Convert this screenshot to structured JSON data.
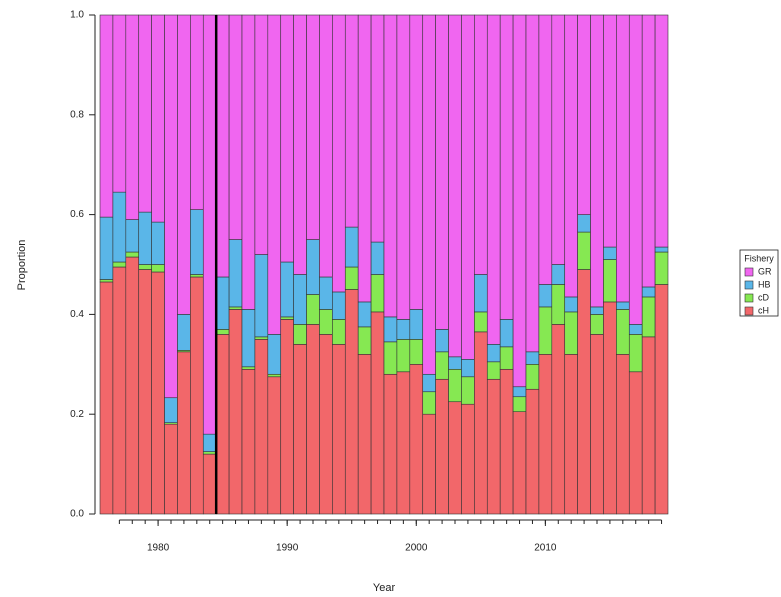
{
  "chart_data": {
    "type": "stacked-bar",
    "x_label": "Year",
    "y_label": "Proportion",
    "x": [
      1976,
      1977,
      1978,
      1979,
      1980,
      1981,
      1982,
      1983,
      1984,
      1985,
      1986,
      1987,
      1988,
      1989,
      1990,
      1991,
      1992,
      1993,
      1994,
      1995,
      1996,
      1997,
      1998,
      1999,
      2000,
      2001,
      2002,
      2003,
      2004,
      2005,
      2006,
      2007,
      2008,
      2009,
      2010,
      2011,
      2012,
      2013,
      2014,
      2015,
      2016,
      2017,
      2018,
      2019
    ],
    "xlim": [
      1975.5,
      2019.5
    ],
    "xticks": [
      1980,
      1990,
      2000,
      2010
    ],
    "ylim": [
      0,
      1
    ],
    "yticks": [
      {
        "value": 0,
        "label": "0.0"
      },
      0.2,
      0.4,
      0.6,
      0.8,
      {
        "value": 1,
        "label": "1.0"
      }
    ],
    "vline": 1984.5,
    "legend_title": "Fishery",
    "legend_position": "right",
    "series": [
      {
        "name": "cH",
        "color": "#f2676a",
        "values": [
          0.465,
          0.495,
          0.515,
          0.49,
          0.485,
          0.18,
          0.325,
          0.475,
          0.12,
          0.36,
          0.41,
          0.29,
          0.35,
          0.275,
          0.39,
          0.34,
          0.38,
          0.36,
          0.34,
          0.45,
          0.32,
          0.405,
          0.28,
          0.285,
          0.3,
          0.2,
          0.27,
          0.225,
          0.22,
          0.365,
          0.27,
          0.29,
          0.205,
          0.25,
          0.32,
          0.38,
          0.32,
          0.49,
          0.36,
          0.425,
          0.32,
          0.285,
          0.355,
          0.46
        ]
      },
      {
        "name": "cD",
        "color": "#86e852",
        "values": [
          0.005,
          0.01,
          0.01,
          0.01,
          0.015,
          0.003,
          0.003,
          0.005,
          0.005,
          0.01,
          0.005,
          0.005,
          0.005,
          0.005,
          0.005,
          0.04,
          0.06,
          0.05,
          0.05,
          0.045,
          0.055,
          0.075,
          0.065,
          0.065,
          0.05,
          0.045,
          0.055,
          0.065,
          0.055,
          0.04,
          0.035,
          0.045,
          0.03,
          0.05,
          0.095,
          0.08,
          0.085,
          0.075,
          0.04,
          0.085,
          0.09,
          0.075,
          0.08,
          0.065
        ]
      },
      {
        "name": "HB",
        "color": "#5ab6e8",
        "values": [
          0.125,
          0.14,
          0.065,
          0.105,
          0.085,
          0.05,
          0.072,
          0.13,
          0.035,
          0.105,
          0.135,
          0.115,
          0.165,
          0.08,
          0.11,
          0.1,
          0.11,
          0.065,
          0.055,
          0.08,
          0.05,
          0.065,
          0.05,
          0.04,
          0.06,
          0.035,
          0.045,
          0.025,
          0.035,
          0.075,
          0.035,
          0.055,
          0.02,
          0.025,
          0.045,
          0.04,
          0.03,
          0.035,
          0.015,
          0.025,
          0.015,
          0.02,
          0.02,
          0.01
        ]
      },
      {
        "name": "GR",
        "color": "#f066f0",
        "values": [
          0.405,
          0.355,
          0.41,
          0.395,
          0.415,
          0.767,
          0.6,
          0.39,
          0.84,
          0.525,
          0.45,
          0.59,
          0.48,
          0.64,
          0.495,
          0.52,
          0.45,
          0.525,
          0.555,
          0.425,
          0.575,
          0.455,
          0.605,
          0.61,
          0.59,
          0.72,
          0.63,
          0.685,
          0.69,
          0.52,
          0.66,
          0.61,
          0.745,
          0.675,
          0.54,
          0.5,
          0.565,
          0.4,
          0.585,
          0.465,
          0.575,
          0.62,
          0.545,
          0.465
        ]
      }
    ]
  }
}
